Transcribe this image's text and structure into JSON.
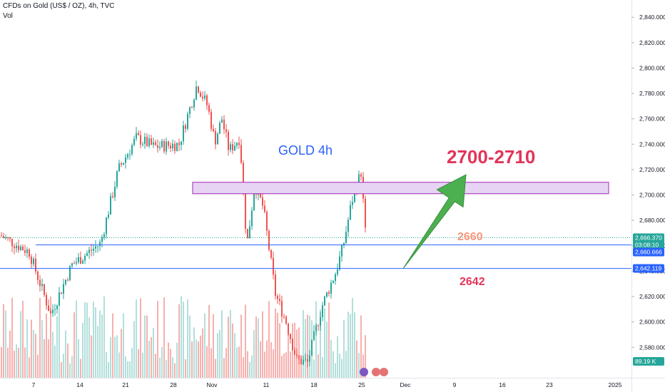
{
  "header": {
    "title": "CFDs on Gold (US$ / OZ), 4h, TVC",
    "volume_label": "Vol"
  },
  "colors": {
    "up": "#26a69a",
    "down": "#ef5350",
    "vol_up": "#b2dfdb",
    "vol_down": "#f7b0ae",
    "level_line": "#2962ff",
    "zone_fill": "#e7d4f5",
    "zone_border": "#9c27b0",
    "arrow": "#4caf50",
    "target_text": "#e2345a",
    "label_2660": "#f7977a",
    "label_2642": "#e2345a",
    "price_tag": "#2962ff",
    "vol_tag": "#26a69a",
    "annotation_blue": "#2962ff"
  },
  "chart_data": {
    "type": "candlestick",
    "symbol": "CFDs on Gold (US$ / OZ)",
    "timeframe": "4h",
    "source": "TVC",
    "y_axis": {
      "range": [
        2556,
        2848
      ],
      "ticks": [
        2580,
        2600,
        2620,
        2640,
        2660,
        2680,
        2700,
        2720,
        2740,
        2760,
        2780,
        2800,
        2820,
        2840
      ],
      "tick_labels": [
        "2,580.000",
        "2,600.000",
        "2,620.000",
        "2,640.000",
        "2,660.000",
        "2,680.000",
        "2,700.000",
        "2,720.000",
        "2,740.000",
        "2,760.000",
        "2,780.000",
        "2,800.000",
        "2,820.000",
        "2,840.000"
      ]
    },
    "x_axis": {
      "tick_labels": [
        "7",
        "14",
        "21",
        "28",
        "Nov",
        "11",
        "18",
        "25",
        "Dec",
        "9",
        "16",
        "23",
        "2025"
      ]
    },
    "price_path": [
      [
        0,
        2668
      ],
      [
        40,
        2655
      ],
      [
        70,
        2606
      ],
      [
        100,
        2645
      ],
      [
        140,
        2662
      ],
      [
        165,
        2720
      ],
      [
        190,
        2745
      ],
      [
        215,
        2738
      ],
      [
        250,
        2740
      ],
      [
        275,
        2787
      ],
      [
        290,
        2770
      ],
      [
        300,
        2742
      ],
      [
        310,
        2760
      ],
      [
        320,
        2735
      ],
      [
        335,
        2745
      ],
      [
        345,
        2660
      ],
      [
        356,
        2708
      ],
      [
        368,
        2690
      ],
      [
        385,
        2622
      ],
      [
        400,
        2600
      ],
      [
        415,
        2570
      ],
      [
        430,
        2568
      ],
      [
        450,
        2612
      ],
      [
        470,
        2640
      ],
      [
        480,
        2660
      ],
      [
        492,
        2695
      ],
      [
        505,
        2718
      ],
      [
        512,
        2663
      ]
    ],
    "last_price": "2,666.370",
    "countdown": "03:08:10",
    "volume_last": "89.19 K",
    "levels": [
      {
        "price": 2660.666,
        "label": "2,660.666"
      },
      {
        "price": 2642.119,
        "label": "2,642.119"
      }
    ],
    "resistance_zone": {
      "low": 2701,
      "high": 2710
    },
    "annotations": {
      "title": "GOLD  4h",
      "target": "2700-2710",
      "level_a": "2660",
      "level_b": "2642"
    }
  }
}
